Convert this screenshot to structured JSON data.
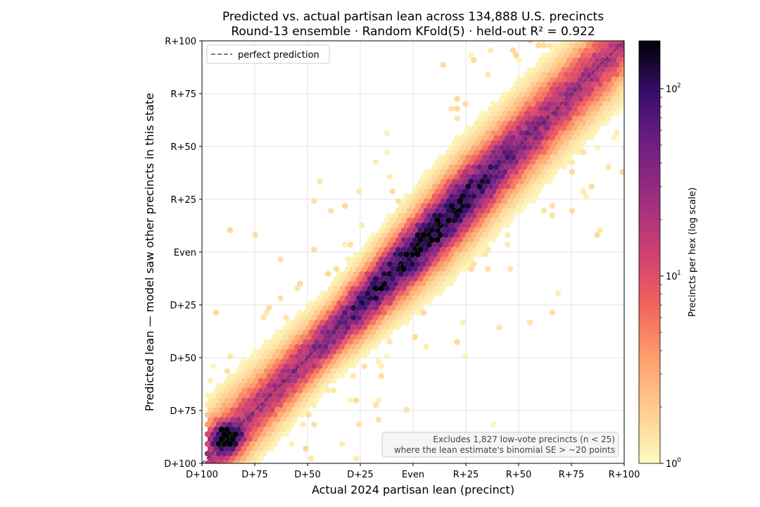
{
  "chart_data": {
    "type": "heatmap",
    "subtype": "hexbin",
    "title": "Predicted vs. actual partisan lean across 134,888 U.S. precincts",
    "subtitle": "Round-13 ensemble · Random KFold(5) · held-out R² = 0.922",
    "xlabel": "Actual 2024 partisan lean (precinct)",
    "ylabel": "Predicted lean — model saw other precincts in this state",
    "xlim": [
      -100,
      100
    ],
    "ylim": [
      -100,
      100
    ],
    "x_ticks": [
      -100,
      -75,
      -50,
      -25,
      0,
      25,
      50,
      75,
      100
    ],
    "x_tick_labels": [
      "D+100",
      "D+75",
      "D+50",
      "D+25",
      "Even",
      "R+25",
      "R+50",
      "R+75",
      "R+100"
    ],
    "y_ticks": [
      -100,
      -75,
      -50,
      -25,
      0,
      25,
      50,
      75,
      100
    ],
    "y_tick_labels": [
      "D+100",
      "D+75",
      "D+50",
      "D+25",
      "Even",
      "R+25",
      "R+50",
      "R+75",
      "R+100"
    ],
    "grid": true,
    "legend": {
      "placement": "top-left",
      "entries": [
        "perfect prediction"
      ]
    },
    "reference_line": {
      "label": "perfect prediction",
      "from": [
        -100,
        -100
      ],
      "to": [
        100,
        100
      ],
      "style": "dashed",
      "color": "#333333"
    },
    "colorbar": {
      "label": "Precincts per hex (log scale)",
      "scale": "log",
      "range": [
        1,
        180
      ],
      "colormap": "magma_r",
      "ticks": [
        1,
        10,
        100
      ],
      "tick_base": "10",
      "tick_exponents": [
        "0",
        "1",
        "2"
      ]
    },
    "annotation_lines": [
      "Excludes 1,827 low-vote precincts (n < 25)",
      "where the lean estimate's binomial SE > ~20 points"
    ],
    "distribution": {
      "center_line": {
        "slope": 1.0,
        "intercept": 0
      },
      "spread_sd": 12,
      "peak_density_near": [
        -88,
        -88
      ],
      "range_x": [
        -98,
        100
      ]
    }
  }
}
